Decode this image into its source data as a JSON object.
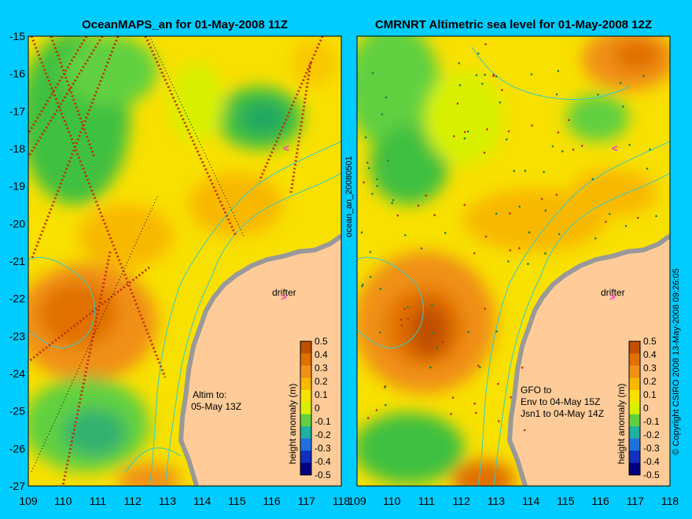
{
  "colors": {
    "frame": "#00ccff",
    "land": "#ffcc99",
    "coast": "#999999",
    "contour": "#33cccc",
    "marker": "#ff33cc"
  },
  "left_panel": {
    "title": "OceanMAPS_an for 01-May-2008 11Z",
    "altim_label_1": "Altim to:",
    "altim_label_2": "05-May 13Z",
    "drifter_label": "drifter",
    "marker_glyph": ">",
    "marker_glyph_2": "<"
  },
  "right_panel": {
    "title": "CMRNRT Altimetric sea level  for 01-May-2008 12Z",
    "gfo_label_1": "GFO to",
    "gfo_label_2": "Env to 04-May 15Z",
    "gfo_label_3": "Jsn1 to 04-May 14Z",
    "drifter_label": "drifter",
    "marker_glyph": ">",
    "marker_glyph_2": "<"
  },
  "vertical_id": "ocean_an_20080501",
  "copyright": "© Copyright CSIRO 2008   13-May-2008 09:26:05",
  "colorbar_units": "height anomaly (m)",
  "lat_ticks": [
    "-15",
    "-16",
    "-17",
    "-18",
    "-19",
    "-20",
    "-21",
    "-22",
    "-23",
    "-24",
    "-25",
    "-26",
    "-27"
  ],
  "lon_ticks": [
    "109",
    "110",
    "111",
    "112",
    "113",
    "114",
    "115",
    "116",
    "117",
    "118"
  ],
  "colorbar_ticks": [
    "0.5",
    "0.4",
    "0.3",
    "0.2",
    "0.1",
    "0",
    "-0.1",
    "-0.2",
    "-0.3",
    "-0.4",
    "-0.5"
  ],
  "colorbar_colors": [
    "#c05000",
    "#e07000",
    "#f09018",
    "#f8b800",
    "#f8e000",
    "#d8f000",
    "#60d040",
    "#20b0a0",
    "#2070e0",
    "#1030c0",
    "#000080"
  ]
}
